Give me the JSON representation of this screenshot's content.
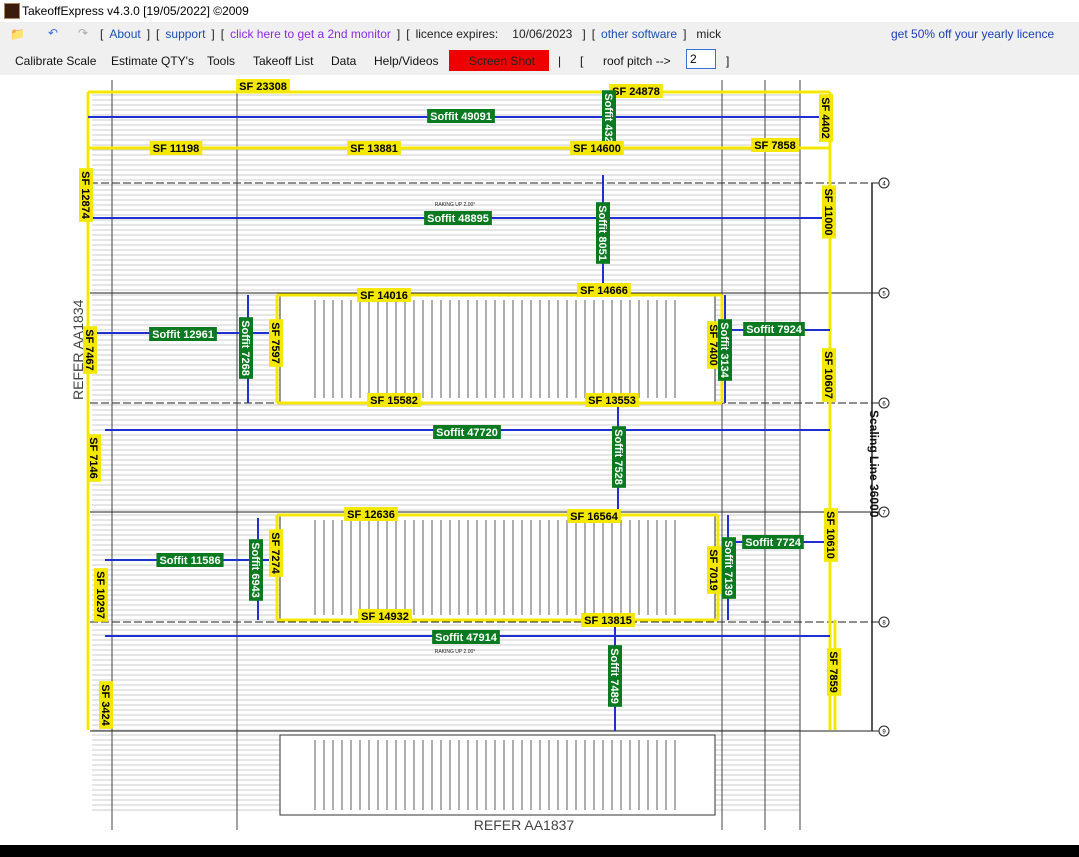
{
  "title_bar": {
    "title": "TakeoffExpress v4.3.0 [19/05/2022] ©2009"
  },
  "toolbar": {
    "items": [
      "[",
      "About",
      "]",
      "[",
      "support",
      "]",
      "[",
      "click here to get a 2nd monitor",
      "]",
      "[",
      "licence expires:",
      "10/06/2023",
      "]",
      "[",
      "other software",
      "]",
      "mick"
    ],
    "promo": "get 50% off your yearly licence"
  },
  "menu": {
    "items": [
      "Calibrate Scale",
      "Estimate QTY's",
      "Tools",
      "Takeoff List",
      "Data",
      "Help/Videos"
    ],
    "screenshot": "Screen Shot",
    "separator": "|",
    "open": "[",
    "pitch_label": "roof pitch -->",
    "pitch_value": "2",
    "close": "]"
  },
  "drawing": {
    "labels": [
      "SF 23308",
      "SF 24878",
      "Soffit 49091",
      "Soffit 432",
      "SF 4402",
      "SF 11198",
      "SF 13881",
      "SF 14600",
      "SF 7858",
      "SF 12874",
      "SF 11000",
      "Soffit 48895",
      "Soffit 8051",
      "SF 14016",
      "SF 14666",
      "Soffit 12961",
      "Soffit 7268",
      "SF 7597",
      "SF 7400",
      "Soffit 3134",
      "Soffit 7924",
      "SF 7467",
      "SF 10607",
      "SF 15582",
      "SF 13553",
      "Soffit 47720",
      "Soffit 7528",
      "SF 7146",
      "SF 12636",
      "SF 16564",
      "Soffit 11586",
      "Soffit 6943",
      "SF 7274",
      "SF 7019",
      "Soffit 7139",
      "Soffit 7724",
      "SF 10610",
      "SF 10297",
      "SF 14932",
      "SF 13815",
      "Soffit 47914",
      "Soffit 7489",
      "SF 7859",
      "SF 3424"
    ],
    "notes": {
      "refer_left": "REFER AA1834",
      "refer_bottom": "REFER AA1837",
      "scaling": "Scaling Line 36000",
      "raking": [
        "RAKING UP 2.00°",
        "RAKING UP 2.00°"
      ]
    },
    "grid_marks": [
      "4",
      "5",
      "6",
      "7",
      "8",
      "9"
    ]
  }
}
